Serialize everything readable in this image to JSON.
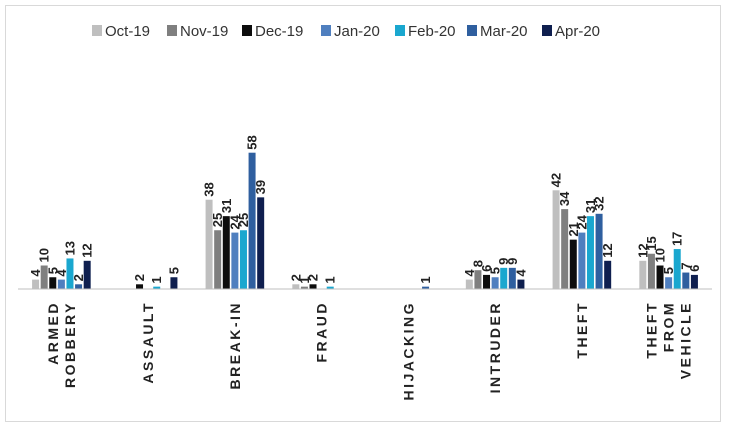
{
  "chart_data": {
    "type": "bar",
    "title": "",
    "xlabel": "",
    "ylabel": "",
    "ylim": [
      0,
      62
    ],
    "grid": false,
    "legend_position": "top",
    "categories": [
      "ARMED ROBBERY",
      "ASSAULT",
      "BREAK-IN",
      "FRAUD",
      "HIJACKING",
      "INTRUDER",
      "THEFT",
      "THEFT FROM VEHICLE"
    ],
    "category_lines": [
      [
        "ARMED",
        "ROBBERY"
      ],
      [
        "ASSAULT"
      ],
      [
        "BREAK-IN"
      ],
      [
        "FRAUD"
      ],
      [
        "HIJACKING"
      ],
      [
        "INTRUDER"
      ],
      [
        "THEFT"
      ],
      [
        "THEFT",
        "FROM",
        "VEHICLE"
      ]
    ],
    "series": [
      {
        "name": "Oct-19",
        "color": "#bfbfbf",
        "values": [
          4,
          0,
          38,
          2,
          0,
          4,
          42,
          12
        ]
      },
      {
        "name": "Nov-19",
        "color": "#7f7f7f",
        "values": [
          10,
          0,
          25,
          1,
          0,
          8,
          34,
          15
        ]
      },
      {
        "name": "Dec-19",
        "color": "#0d0d0d",
        "values": [
          5,
          2,
          31,
          2,
          0,
          6,
          21,
          10
        ]
      },
      {
        "name": "Jan-20",
        "color": "#4f7fbf",
        "values": [
          4,
          0,
          24,
          0,
          0,
          5,
          24,
          5
        ]
      },
      {
        "name": "Feb-20",
        "color": "#1aa7cf",
        "values": [
          13,
          1,
          25,
          1,
          0,
          9,
          31,
          17
        ]
      },
      {
        "name": "Mar-20",
        "color": "#2f5f9f",
        "values": [
          2,
          0,
          58,
          0,
          1,
          9,
          32,
          7
        ]
      },
      {
        "name": "Apr-20",
        "color": "#0f1f4f",
        "values": [
          12,
          5,
          39,
          0,
          0,
          4,
          12,
          6
        ]
      }
    ]
  }
}
